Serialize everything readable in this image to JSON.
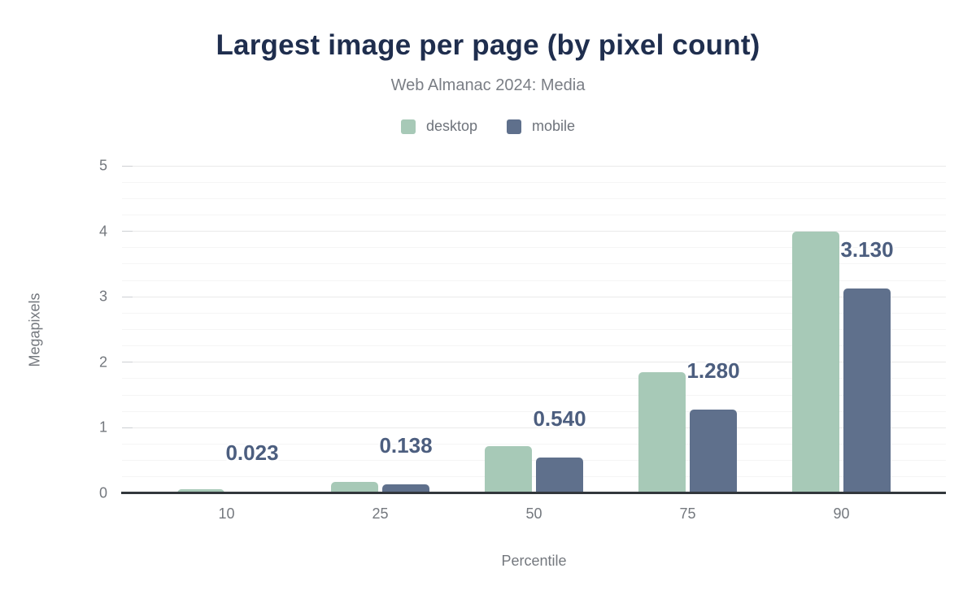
{
  "chart_data": {
    "type": "bar",
    "title": "Largest image per page (by pixel count)",
    "subtitle": "Web Almanac 2024: Media",
    "xlabel": "Percentile",
    "ylabel": "Megapixels",
    "categories": [
      "10",
      "25",
      "50",
      "75",
      "90"
    ],
    "series": [
      {
        "name": "desktop",
        "color": "#a7c9b7",
        "values": [
          0.06,
          0.18,
          0.72,
          1.85,
          4.0
        ],
        "labels": [
          "",
          "",
          "",
          "",
          ""
        ]
      },
      {
        "name": "mobile",
        "color": "#5f708c",
        "values": [
          0.023,
          0.138,
          0.54,
          1.28,
          3.13
        ],
        "labels": [
          "0.023",
          "0.138",
          "0.540",
          "1.280",
          "3.130"
        ]
      }
    ],
    "ylim": [
      0,
      5
    ],
    "y_major_step": 1,
    "y_minor_step": 0.25,
    "y_tick_labels": [
      "0",
      "1",
      "2",
      "3",
      "4",
      "5"
    ],
    "legend_position": "top",
    "grid": true
  },
  "colors": {
    "title": "#1f2e4e",
    "subtitle": "#7a7e85",
    "axis_text": "#74787e",
    "legend_text": "#6e737b",
    "data_label": "#4c5e7f",
    "baseline": "#32373c",
    "grid_major": "#eaeaea",
    "grid_minor": "#f5f5f5"
  }
}
